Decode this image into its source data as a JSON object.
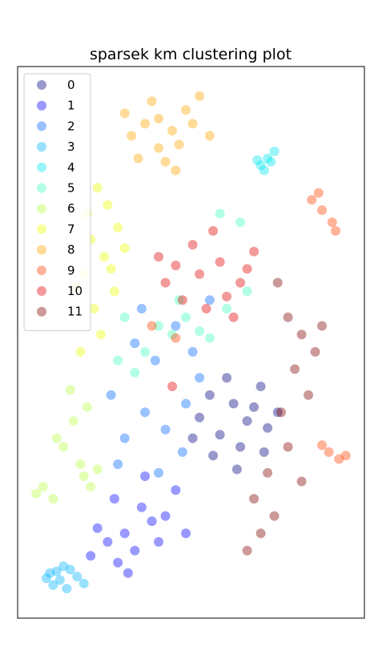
{
  "chart_data": {
    "type": "scatter",
    "title": "sparsek km clustering plot",
    "xlabel": "",
    "ylabel": "",
    "axes_ticks": "none",
    "grid": false,
    "legend_position": "top-left",
    "marker_alpha": 0.4,
    "colormap": "jet",
    "series": [
      {
        "name": "0",
        "color": "#00007f",
        "values": [
          [
            0.62,
            -0.2
          ],
          [
            0.66,
            -0.3
          ],
          [
            0.58,
            -0.38
          ],
          [
            0.7,
            -0.1
          ],
          [
            0.55,
            -0.15
          ],
          [
            0.64,
            -0.45
          ],
          [
            0.72,
            -0.34
          ],
          [
            0.6,
            -0.05
          ],
          [
            0.52,
            -0.28
          ],
          [
            0.68,
            -0.22
          ],
          [
            0.75,
            -0.25
          ],
          [
            0.5,
            -0.4
          ],
          [
            0.56,
            -0.5
          ],
          [
            0.63,
            -0.58
          ],
          [
            0.71,
            -0.48
          ]
        ]
      },
      {
        "name": "1",
        "color": "#0000ff",
        "values": [
          [
            0.3,
            -0.95
          ],
          [
            0.33,
            -1.05
          ],
          [
            0.25,
            -1.0
          ],
          [
            0.38,
            -0.88
          ],
          [
            0.28,
            -1.12
          ],
          [
            0.35,
            -0.8
          ],
          [
            0.22,
            -0.92
          ],
          [
            0.4,
            -1.0
          ],
          [
            0.31,
            -1.18
          ],
          [
            0.45,
            -0.7
          ],
          [
            0.2,
            -1.08
          ],
          [
            0.36,
            -0.62
          ],
          [
            0.42,
            -0.85
          ],
          [
            0.27,
            -0.75
          ],
          [
            0.48,
            -0.95
          ]
        ]
      },
      {
        "name": "2",
        "color": "#0066ff",
        "values": [
          [
            0.36,
            -0.25
          ],
          [
            0.42,
            -0.35
          ],
          [
            0.3,
            -0.4
          ],
          [
            0.48,
            -0.2
          ],
          [
            0.39,
            0.05
          ],
          [
            0.33,
            0.15
          ],
          [
            0.45,
            0.25
          ],
          [
            0.52,
            -0.05
          ],
          [
            0.28,
            -0.55
          ],
          [
            0.4,
            -0.6
          ],
          [
            0.35,
            0.35
          ],
          [
            0.55,
            0.4
          ],
          [
            0.47,
            -0.48
          ],
          [
            0.26,
            -0.15
          ],
          [
            0.5,
            0.1
          ]
        ]
      },
      {
        "name": "3",
        "color": "#00b3ff",
        "values": [
          [
            0.08,
            -1.18
          ],
          [
            0.11,
            -1.22
          ],
          [
            0.14,
            -1.16
          ],
          [
            0.09,
            -1.25
          ],
          [
            0.16,
            -1.2
          ],
          [
            0.12,
            -1.14
          ],
          [
            0.18,
            -1.24
          ],
          [
            0.07,
            -1.21
          ],
          [
            0.13,
            -1.27
          ],
          [
            0.1,
            -1.17
          ]
        ]
      },
      {
        "name": "4",
        "color": "#00e5ee",
        "values": [
          [
            0.72,
            1.22
          ],
          [
            0.74,
            1.26
          ],
          [
            0.7,
            1.18
          ],
          [
            0.73,
            1.2
          ],
          [
            0.71,
            1.15
          ],
          [
            0.69,
            1.21
          ]
        ]
      },
      {
        "name": "5",
        "color": "#40ffb8",
        "values": [
          [
            0.4,
            0.25
          ],
          [
            0.44,
            0.2
          ],
          [
            0.48,
            0.3
          ],
          [
            0.36,
            0.1
          ],
          [
            0.52,
            0.22
          ],
          [
            0.6,
            0.35
          ],
          [
            0.64,
            0.85
          ],
          [
            0.58,
            0.9
          ],
          [
            0.28,
            0.05
          ],
          [
            0.33,
            -0.02
          ],
          [
            0.46,
            0.4
          ],
          [
            0.55,
            0.18
          ],
          [
            0.66,
            0.45
          ],
          [
            0.3,
            0.3
          ]
        ]
      },
      {
        "name": "6",
        "color": "#b8ff40",
        "values": [
          [
            0.04,
            -0.72
          ],
          [
            0.06,
            -0.68
          ],
          [
            0.09,
            -0.75
          ],
          [
            0.18,
            -0.62
          ],
          [
            0.2,
            -0.68
          ],
          [
            0.17,
            -0.55
          ],
          [
            0.22,
            -0.58
          ],
          [
            0.12,
            -0.45
          ],
          [
            0.1,
            -0.4
          ],
          [
            0.15,
            -0.3
          ],
          [
            0.19,
            -0.22
          ],
          [
            0.14,
            -0.12
          ]
        ]
      },
      {
        "name": "7",
        "color": "#e8ff00",
        "values": [
          [
            0.22,
            1.05
          ],
          [
            0.25,
            0.95
          ],
          [
            0.28,
            0.82
          ],
          [
            0.2,
            0.75
          ],
          [
            0.24,
            0.65
          ],
          [
            0.18,
            0.55
          ],
          [
            0.27,
            0.45
          ],
          [
            0.21,
            0.35
          ],
          [
            0.16,
            0.48
          ],
          [
            0.3,
            0.7
          ],
          [
            0.19,
            0.9
          ],
          [
            0.23,
            0.2
          ],
          [
            0.17,
            0.1
          ],
          [
            0.26,
            0.58
          ]
        ]
      },
      {
        "name": "8",
        "color": "#ffa500",
        "values": [
          [
            0.32,
            1.35
          ],
          [
            0.36,
            1.42
          ],
          [
            0.4,
            1.28
          ],
          [
            0.44,
            1.38
          ],
          [
            0.48,
            1.5
          ],
          [
            0.38,
            1.55
          ],
          [
            0.42,
            1.2
          ],
          [
            0.46,
            1.3
          ],
          [
            0.5,
            1.42
          ],
          [
            0.34,
            1.22
          ],
          [
            0.52,
            1.58
          ],
          [
            0.4,
            1.45
          ],
          [
            0.45,
            1.15
          ],
          [
            0.55,
            1.35
          ],
          [
            0.3,
            1.48
          ]
        ]
      },
      {
        "name": "9",
        "color": "#ff4000",
        "values": [
          [
            0.85,
            0.98
          ],
          [
            0.88,
            0.92
          ],
          [
            0.91,
            0.85
          ],
          [
            0.87,
            1.02
          ],
          [
            0.92,
            0.8
          ],
          [
            0.9,
            -0.48
          ],
          [
            0.93,
            -0.52
          ],
          [
            0.88,
            -0.44
          ],
          [
            0.95,
            -0.5
          ],
          [
            0.38,
            0.25
          ],
          [
            0.45,
            0.18
          ]
        ]
      },
      {
        "name": "10",
        "color": "#e00000",
        "values": [
          [
            0.52,
            0.55
          ],
          [
            0.58,
            0.62
          ],
          [
            0.45,
            0.6
          ],
          [
            0.64,
            0.5
          ],
          [
            0.5,
            0.72
          ],
          [
            0.56,
            0.8
          ],
          [
            0.42,
            0.5
          ],
          [
            0.68,
            0.68
          ],
          [
            0.6,
            0.42
          ],
          [
            0.47,
            0.4
          ],
          [
            0.54,
            0.35
          ],
          [
            0.62,
            0.3
          ],
          [
            0.4,
            0.65
          ],
          [
            0.66,
            0.58
          ],
          [
            0.44,
            -0.1
          ]
        ]
      },
      {
        "name": "11",
        "color": "#800000",
        "values": [
          [
            0.78,
            0.3
          ],
          [
            0.82,
            0.2
          ],
          [
            0.86,
            0.1
          ],
          [
            0.8,
            0.0
          ],
          [
            0.84,
            -0.15
          ],
          [
            0.76,
            -0.25
          ],
          [
            0.72,
            -0.6
          ],
          [
            0.68,
            -0.75
          ],
          [
            0.74,
            -0.85
          ],
          [
            0.7,
            -0.95
          ],
          [
            0.66,
            -1.05
          ],
          [
            0.78,
            -0.45
          ],
          [
            0.88,
            0.25
          ],
          [
            0.75,
            0.5
          ],
          [
            0.82,
            -0.65
          ]
        ]
      }
    ]
  }
}
